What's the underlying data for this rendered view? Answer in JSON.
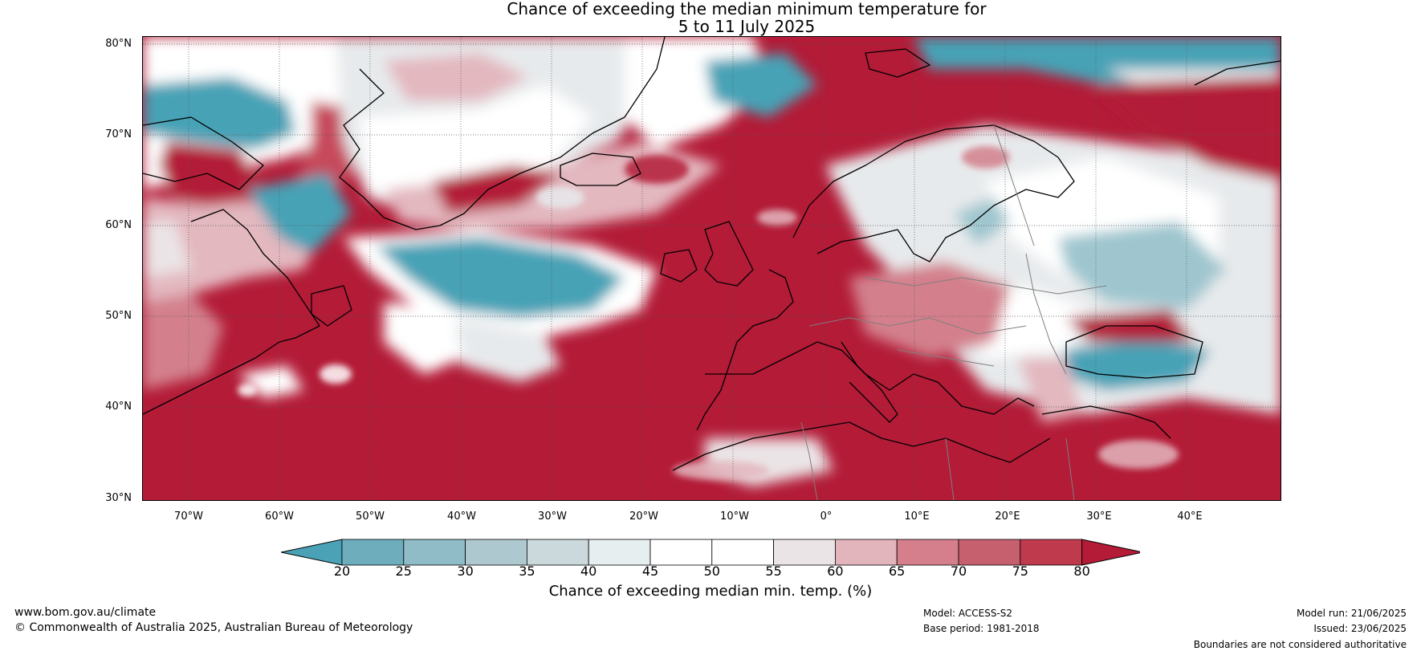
{
  "title": {
    "line1": "Chance of exceeding the median minimum temperature for",
    "line2": "5 to 11 July 2025"
  },
  "latitudes": [
    "80°N",
    "70°N",
    "60°N",
    "50°N",
    "40°N",
    "30°N"
  ],
  "longitudes": [
    "70°W",
    "60°W",
    "50°W",
    "40°W",
    "30°W",
    "20°W",
    "10°W",
    "0°",
    "10°E",
    "20°E",
    "30°E",
    "40°E"
  ],
  "colorbar": {
    "ticks": [
      "20",
      "25",
      "30",
      "35",
      "40",
      "45",
      "50",
      "55",
      "60",
      "65",
      "70",
      "75",
      "80"
    ],
    "colors": [
      "#4ba1b5",
      "#6eaebc",
      "#8fbcc6",
      "#aec8cf",
      "#cbd8dc",
      "#e6eef0",
      "#ffffff",
      "#ffffff",
      "#ebe4e6",
      "#e2b5bd",
      "#d57f8c",
      "#c6606f",
      "#bf3a4c",
      "#b31b37"
    ],
    "title": "Chance of exceeding median min. temp. (%)"
  },
  "colors": {
    "blue_deep": "#47a2b6",
    "blue_mid": "#9fc6cf",
    "grey_light": "#e7eaec",
    "pink_light": "#e3b8bf",
    "pink_mid": "#d3808c",
    "red_mid": "#c6485b",
    "red_deep": "#b31b37"
  },
  "footer": {
    "website": "www.bom.gov.au/climate",
    "copyright": "© Commonwealth of Australia 2025, Australian Bureau of Meteorology",
    "model": "Model: ACCESS-S2",
    "base_period": "Base period: 1981-2018",
    "model_run": "Model run: 21/06/2025",
    "issued": "Issued: 23/06/2025",
    "disclaimer": "Boundaries are not considered authoritative"
  }
}
